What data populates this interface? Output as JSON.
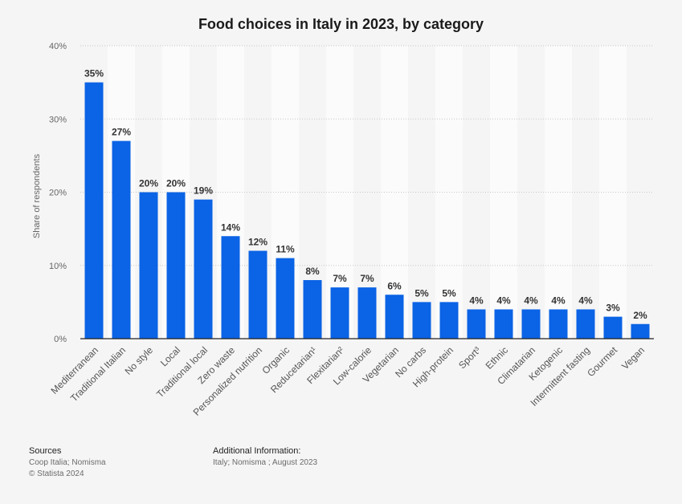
{
  "chart_data": {
    "type": "bar",
    "title": "Food choices in Italy in 2023, by category",
    "xlabel": "",
    "ylabel": "Share of respondents",
    "ylim": [
      0,
      40
    ],
    "yticks": [
      "0%",
      "10%",
      "20%",
      "30%",
      "40%"
    ],
    "grid": true,
    "categories": [
      "Mediterranean",
      "Traditional Italian",
      "No style",
      "Local",
      "Traditional local",
      "Zero waste",
      "Personalized nutrition",
      "Organic",
      "Reducetarian¹",
      "Flexitarian²",
      "Low-calorie",
      "Vegetarian",
      "No carbs",
      "High-protein",
      "Sport³",
      "Ethnic",
      "Climatarian",
      "Ketogenic",
      "Intermittent fasting",
      "Gourmet",
      "Vegan"
    ],
    "values": [
      35,
      27,
      20,
      20,
      19,
      14,
      12,
      11,
      8,
      7,
      7,
      6,
      5,
      5,
      4,
      4,
      4,
      4,
      4,
      3,
      2
    ],
    "value_labels": [
      "35%",
      "27%",
      "20%",
      "20%",
      "19%",
      "14%",
      "12%",
      "11%",
      "8%",
      "7%",
      "7%",
      "6%",
      "5%",
      "5%",
      "4%",
      "4%",
      "4%",
      "4%",
      "4%",
      "3%",
      "2%"
    ],
    "bar_color": "#0b63e5"
  },
  "footer": {
    "sources_heading": "Sources",
    "sources_line1": "Coop Italia; Nomisma",
    "sources_line2": "© Statista 2024",
    "additional_heading": "Additional Information:",
    "additional_text": "Italy; Nomisma ; August 2023"
  }
}
